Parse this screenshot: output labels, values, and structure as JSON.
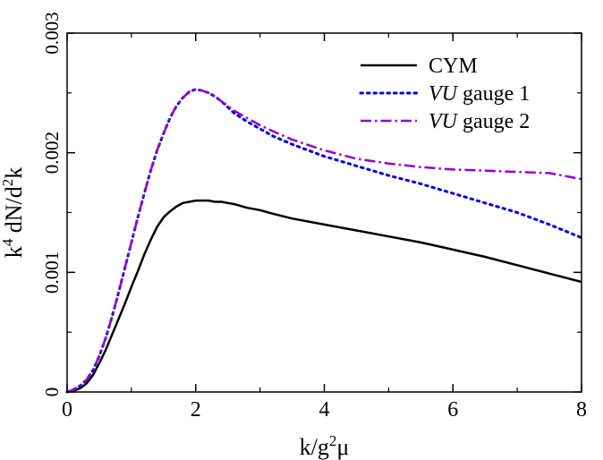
{
  "chart_data": {
    "type": "line",
    "title": "",
    "xlabel": {
      "pre": "k/g",
      "sup": "2",
      "post": "μ"
    },
    "ylabel": {
      "a": "k",
      "sup1": "4",
      "b": " dN/d",
      "sup2": "2",
      "c": "k"
    },
    "xlim": [
      0,
      8
    ],
    "ylim": [
      0,
      0.003
    ],
    "xticks": [
      0,
      2,
      4,
      6,
      8
    ],
    "xtick_labels": [
      "0",
      "2",
      "4",
      "6",
      "8"
    ],
    "yticks": [
      0,
      0.001,
      0.002,
      0.003
    ],
    "ytick_labels": [
      "0",
      "0.001",
      "0.002",
      "0.003"
    ],
    "grid": false,
    "legend_position": "top-right",
    "series": [
      {
        "name": "CYM",
        "legend_italic": "",
        "legend_rest": "CYM",
        "color": "#000000",
        "style": "solid",
        "x": [
          0,
          0.1,
          0.2,
          0.3,
          0.4,
          0.5,
          0.6,
          0.7,
          0.8,
          0.9,
          1.0,
          1.1,
          1.2,
          1.3,
          1.4,
          1.5,
          1.6,
          1.7,
          1.8,
          1.9,
          2.0,
          2.1,
          2.2,
          2.3,
          2.4,
          2.5,
          2.6,
          2.8,
          3.0,
          3.2,
          3.5,
          4.0,
          4.5,
          5.0,
          5.5,
          6.0,
          6.5,
          7.0,
          7.5,
          8.0
        ],
        "y": [
          0,
          1e-05,
          3e-05,
          7e-05,
          0.00014,
          0.00024,
          0.00035,
          0.00048,
          0.00061,
          0.00074,
          0.00088,
          0.00101,
          0.00115,
          0.00127,
          0.00138,
          0.00146,
          0.00151,
          0.00155,
          0.00158,
          0.00159,
          0.0016,
          0.0016,
          0.0016,
          0.00159,
          0.00159,
          0.00158,
          0.00157,
          0.00154,
          0.00152,
          0.00149,
          0.00145,
          0.0014,
          0.00135,
          0.0013,
          0.00125,
          0.00119,
          0.00113,
          0.00106,
          0.00099,
          0.00092
        ]
      },
      {
        "name": "VU gauge 1",
        "legend_italic": "VU",
        "legend_rest": " gauge 1",
        "color": "#0000ee",
        "style": "dotted",
        "x": [
          0,
          0.1,
          0.2,
          0.3,
          0.4,
          0.5,
          0.6,
          0.7,
          0.8,
          0.9,
          1.0,
          1.1,
          1.2,
          1.3,
          1.4,
          1.5,
          1.6,
          1.7,
          1.8,
          1.9,
          2.0,
          2.1,
          2.2,
          2.3,
          2.4,
          2.5,
          2.6,
          2.8,
          3.0,
          3.2,
          3.5,
          4.0,
          4.5,
          5.0,
          5.5,
          6.0,
          6.5,
          7.0,
          7.5,
          8.0
        ],
        "y": [
          0,
          2e-05,
          5e-05,
          0.0001,
          0.00018,
          0.0003,
          0.00045,
          0.00063,
          0.00083,
          0.00104,
          0.00125,
          0.00146,
          0.00166,
          0.00185,
          0.00202,
          0.00216,
          0.00229,
          0.00239,
          0.00246,
          0.00251,
          0.00253,
          0.00252,
          0.0025,
          0.00247,
          0.00243,
          0.00238,
          0.00233,
          0.00226,
          0.0022,
          0.00214,
          0.00207,
          0.00197,
          0.00189,
          0.00181,
          0.00174,
          0.00166,
          0.00158,
          0.0015,
          0.0014,
          0.00129
        ]
      },
      {
        "name": "VU gauge 2",
        "legend_italic": "VU",
        "legend_rest": " gauge 2",
        "color": "#9400d3",
        "style": "dashdot",
        "x": [
          0,
          0.1,
          0.2,
          0.3,
          0.4,
          0.5,
          0.6,
          0.7,
          0.8,
          0.9,
          1.0,
          1.1,
          1.2,
          1.3,
          1.4,
          1.5,
          1.6,
          1.7,
          1.8,
          1.9,
          2.0,
          2.1,
          2.2,
          2.3,
          2.4,
          2.5,
          2.6,
          2.8,
          3.0,
          3.2,
          3.5,
          4.0,
          4.5,
          5.0,
          5.5,
          6.0,
          6.5,
          7.0,
          7.5,
          8.0
        ],
        "y": [
          0,
          2e-05,
          5e-05,
          0.0001,
          0.00018,
          0.0003,
          0.00045,
          0.00063,
          0.00083,
          0.00104,
          0.00125,
          0.00146,
          0.00166,
          0.00185,
          0.00202,
          0.00216,
          0.00229,
          0.00239,
          0.00246,
          0.00251,
          0.00253,
          0.00252,
          0.0025,
          0.00247,
          0.00243,
          0.00239,
          0.00235,
          0.00229,
          0.00223,
          0.00218,
          0.00211,
          0.00202,
          0.00195,
          0.00191,
          0.00188,
          0.00186,
          0.00185,
          0.00184,
          0.00183,
          0.00178
        ]
      }
    ]
  }
}
